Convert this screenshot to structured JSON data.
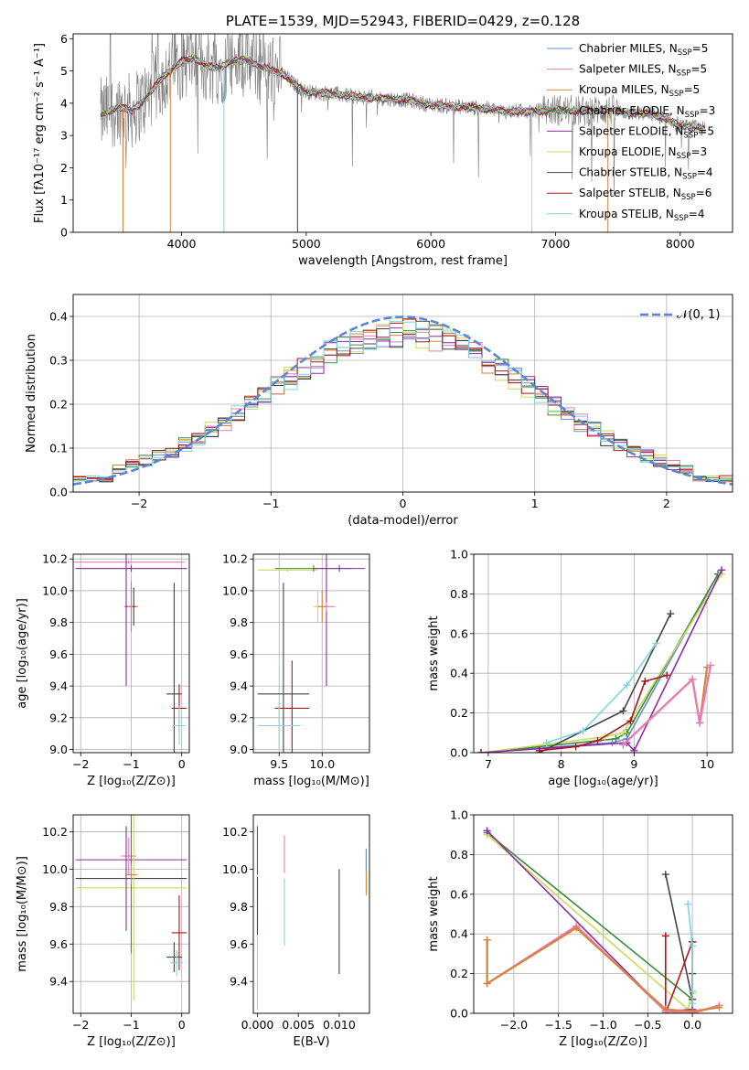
{
  "chart_data": [
    {
      "id": "spectrum",
      "type": "line",
      "title": "PLATE=1539, MJD=52943, FIBERID=0429, z=0.128",
      "xlabel": "wavelength [Angstrom, rest frame]",
      "ylabel": "Flux [fλ10⁻¹⁷ erg cm⁻² s⁻¹ A⁻¹]",
      "xlim": [
        3130,
        8420
      ],
      "ylim": [
        0,
        6.15
      ],
      "xticks": [
        4000,
        5000,
        6000,
        7000,
        8000
      ],
      "yticks": [
        0,
        1,
        2,
        3,
        4,
        5,
        6
      ],
      "grid": false,
      "legend": "upper right",
      "legend_entries": [
        {
          "label": "Chabrier MILES, N",
          "sub": "SSP",
          "eq": "=5",
          "color": "#6a8fd8"
        },
        {
          "label": "Salpeter MILES, N",
          "sub": "SSP",
          "eq": "=5",
          "color": "#e87ab8"
        },
        {
          "label": "Kroupa MILES, N",
          "sub": "SSP",
          "eq": "=5",
          "color": "#d9843b"
        },
        {
          "label": "Chabrier ELODIE, N",
          "sub": "SSP",
          "eq": "=3",
          "color": "#3c8c3c"
        },
        {
          "label": "Salpeter ELODIE, N",
          "sub": "SSP",
          "eq": "=5",
          "color": "#8e2aa8"
        },
        {
          "label": "Kroupa ELODIE, N",
          "sub": "SSP",
          "eq": "=3",
          "color": "#c9dc5a"
        },
        {
          "label": "Chabrier STELIB, N",
          "sub": "SSP",
          "eq": "=4",
          "color": "#444444"
        },
        {
          "label": "Salpeter STELIB, N",
          "sub": "SSP",
          "eq": "=6",
          "color": "#b0151a"
        },
        {
          "label": "Kroupa STELIB, N",
          "sub": "SSP",
          "eq": "=4",
          "color": "#7fd6e0"
        }
      ],
      "continuum_x": [
        3350,
        3500,
        3600,
        3700,
        3800,
        3900,
        4000,
        4100,
        4200,
        4300,
        4400,
        4500,
        4600,
        4700,
        4800,
        4900,
        5000,
        5200,
        5400,
        5600,
        5800,
        6000,
        6200,
        6400,
        6600,
        6800,
        7000,
        7200,
        7400,
        7600,
        7800,
        8000,
        8200
      ],
      "continuum_y": [
        3.6,
        3.9,
        3.75,
        4.1,
        4.6,
        5.0,
        5.3,
        5.4,
        5.15,
        5.1,
        5.3,
        5.35,
        5.2,
        5.05,
        4.95,
        4.6,
        4.35,
        4.3,
        4.2,
        4.15,
        4.1,
        3.95,
        3.9,
        3.85,
        3.75,
        3.75,
        3.8,
        3.75,
        3.8,
        3.7,
        3.65,
        3.3,
        3.2
      ],
      "absorption_features": [
        {
          "x": 3530,
          "color": "#d9843b"
        },
        {
          "x": 3910,
          "color": "#d9843b"
        },
        {
          "x": 4340,
          "color": "#7fd6e0"
        },
        {
          "x": 4930,
          "color": "#444444"
        },
        {
          "x": 6810,
          "color": "#c9dc5a"
        },
        {
          "x": 7420,
          "color": "#d9843b"
        }
      ]
    },
    {
      "id": "residuals",
      "type": "histogram",
      "xlabel": "(data-model)/error",
      "ylabel": "Normed distribution",
      "xlim": [
        -2.5,
        2.5
      ],
      "ylim": [
        0,
        0.45
      ],
      "xticks": [
        -2,
        -1,
        0,
        1,
        2
      ],
      "yticks": [
        0.0,
        0.1,
        0.2,
        0.3,
        0.4
      ],
      "grid": true,
      "legend": "upper right",
      "legend_label": "𝒩(0, 1)",
      "normal_curve": {
        "mean": 0,
        "sigma": 1,
        "color": "#5b86d6"
      },
      "bin_width": 0.1,
      "bin_start": -2.5,
      "mean_profile": [
        0.04,
        0.035,
        0.03,
        0.04,
        0.05,
        0.06,
        0.07,
        0.08,
        0.09,
        0.1,
        0.115,
        0.13,
        0.15,
        0.17,
        0.19,
        0.205,
        0.22,
        0.235,
        0.25,
        0.27,
        0.29,
        0.31,
        0.33,
        0.345,
        0.35,
        0.355,
        0.36,
        0.35,
        0.335,
        0.345,
        0.35,
        0.34,
        0.33,
        0.325,
        0.33,
        0.33,
        0.325,
        0.34,
        0.32,
        0.3,
        0.29,
        0.26,
        0.24,
        0.25,
        0.24,
        0.2,
        0.19,
        0.18,
        0.175,
        0.16,
        0.15,
        0.14,
        0.13,
        0.12,
        0.11,
        0.1,
        0.09,
        0.08,
        0.07,
        0.06,
        0.05,
        0.045,
        0.04,
        0.035,
        0.03,
        0.035,
        0.03,
        0.025,
        0.03,
        0.025,
        0.025,
        0.03,
        0.03,
        0.025,
        0.03,
        0.035,
        0.03,
        0.03,
        0.03,
        0.035,
        0.03,
        0.03,
        0.03,
        0.035,
        0.03,
        0.025,
        0.03,
        0.03,
        0.03,
        0.03,
        0.03,
        0.03,
        0.03,
        0.03,
        0.03,
        0.03,
        0.03,
        0.03,
        0.03,
        0.03
      ],
      "series_colors": [
        "#6a8fd8",
        "#e87ab8",
        "#d9843b",
        "#3c8c3c",
        "#8e2aa8",
        "#c9dc5a",
        "#444444",
        "#b0151a",
        "#7fd6e0"
      ]
    },
    {
      "id": "age-vs-Z",
      "type": "errorbar",
      "xlabel": "Z [log₁₀(Z/Z⊙)]",
      "ylabel": "age  [log₁₀(age/yr)]",
      "xlim": [
        -2.15,
        0.15
      ],
      "ylim": [
        8.98,
        10.23
      ],
      "xticks": [
        -2,
        -1,
        0
      ],
      "yticks": [
        9.0,
        9.2,
        9.4,
        9.6,
        9.8,
        10.0,
        10.2
      ],
      "grid": true,
      "points": [
        {
          "x": -1.0,
          "y": 10.14,
          "xerr": 1.1,
          "yerr": 0.03,
          "color": "#3c8c3c"
        },
        {
          "x": -1.0,
          "y": 10.14,
          "xerr": 1.05,
          "yerr": 0.04,
          "color": "#c9dc5a"
        },
        {
          "x": -1.0,
          "y": 10.14,
          "xerr": 1.1,
          "yerr": 0.02,
          "color": "#8e2aa8"
        },
        {
          "x": -1.05,
          "y": 10.18,
          "xerr": 1.1,
          "yerr": 0.01,
          "color": "#e87ab8"
        },
        {
          "x": -1.0,
          "y": 9.9,
          "xerr": 0.1,
          "yerr": 0.16,
          "color": "#6a8fd8"
        },
        {
          "x": -1.0,
          "y": 9.9,
          "xerr": 0.14,
          "yerr": 0.03,
          "color": "#e87ab8"
        },
        {
          "x": -1.0,
          "y": 9.9,
          "xerr": 0.12,
          "yerr": 0.03,
          "color": "#d9843b"
        },
        {
          "x": -1.1,
          "y": 9.9,
          "xerr": 0.02,
          "yerr": 0.5,
          "color": "#8e2aa8"
        },
        {
          "x": -0.95,
          "y": 9.9,
          "xerr": 0.02,
          "yerr": 0.12,
          "color": "#444444"
        },
        {
          "x": -0.15,
          "y": 9.35,
          "xerr": 0.15,
          "yerr": 0.7,
          "color": "#444444"
        },
        {
          "x": -0.05,
          "y": 9.26,
          "xerr": 0.15,
          "yerr": 0.15,
          "color": "#b0151a"
        },
        {
          "x": -0.05,
          "y": 9.15,
          "xerr": 0.12,
          "yerr": 0.12,
          "color": "#7fd6e0"
        }
      ]
    },
    {
      "id": "age-vs-mass",
      "type": "errorbar",
      "xlabel": "mass [log₁₀(M/M⊙)]",
      "ylabel": "",
      "xlim": [
        9.2,
        10.55
      ],
      "ylim": [
        8.98,
        10.23
      ],
      "xticks": [
        9.5,
        10.0
      ],
      "yticks": [
        9.0,
        9.2,
        9.4,
        9.6,
        9.8,
        10.0,
        10.2
      ],
      "grid": true,
      "points": [
        {
          "x": 9.6,
          "y": 10.13,
          "xerr": 0.35,
          "yerr": 0.01,
          "color": "#c9dc5a"
        },
        {
          "x": 9.9,
          "y": 10.14,
          "xerr": 0.45,
          "yerr": 0.02,
          "color": "#3c8c3c"
        },
        {
          "x": 10.2,
          "y": 10.14,
          "xerr": 0.3,
          "yerr": 0.02,
          "color": "#8e2aa8"
        },
        {
          "x": 10.05,
          "y": 9.9,
          "xerr": 0.02,
          "yerr": 0.5,
          "color": "#8e2aa8"
        },
        {
          "x": 10.05,
          "y": 9.9,
          "xerr": 0.1,
          "yerr": 0.03,
          "color": "#e87ab8"
        },
        {
          "x": 9.95,
          "y": 9.9,
          "xerr": 0.05,
          "yerr": 0.1,
          "color": "#c9dc5a"
        },
        {
          "x": 10.0,
          "y": 9.9,
          "xerr": 0.05,
          "yerr": 0.1,
          "color": "#d9843b"
        },
        {
          "x": 9.55,
          "y": 9.35,
          "xerr": 0.3,
          "yerr": 0.7,
          "color": "#444444"
        },
        {
          "x": 9.65,
          "y": 9.26,
          "xerr": 0.2,
          "yerr": 0.3,
          "color": "#b0151a"
        },
        {
          "x": 9.5,
          "y": 9.15,
          "xerr": 0.25,
          "yerr": 0.15,
          "color": "#7fd6e0"
        }
      ]
    },
    {
      "id": "mass-weight-vs-age",
      "type": "line",
      "xlabel": "age  [log₁₀(age/yr)]",
      "ylabel": "mass weight",
      "xlim": [
        6.8,
        10.35
      ],
      "ylim": [
        0,
        1.0
      ],
      "xticks": [
        7,
        8,
        9,
        10
      ],
      "yticks": [
        0.0,
        0.2,
        0.4,
        0.6,
        0.8,
        1.0
      ],
      "grid": true,
      "series": [
        {
          "color": "#6a8fd8",
          "x": [
            6.9,
            8.7,
            8.9,
            10.15
          ],
          "y": [
            0.0,
            0.05,
            0.07,
            0.9
          ]
        },
        {
          "color": "#3c8c3c",
          "x": [
            6.9,
            8.75,
            8.9,
            10.15
          ],
          "y": [
            0.0,
            0.07,
            0.1,
            0.9
          ]
        },
        {
          "color": "#c9dc5a",
          "x": [
            6.9,
            8.6,
            8.85,
            10.2
          ],
          "y": [
            0.0,
            0.08,
            0.1,
            0.9
          ]
        },
        {
          "color": "#8e2aa8",
          "x": [
            6.9,
            8.9,
            9.0,
            10.2
          ],
          "y": [
            0.0,
            0.05,
            0.01,
            0.92
          ]
        },
        {
          "color": "#444444",
          "x": [
            7.7,
            8.85,
            9.5
          ],
          "y": [
            0.0,
            0.21,
            0.7
          ]
        },
        {
          "color": "#b0151a",
          "x": [
            7.7,
            8.2,
            8.5,
            8.95,
            9.15,
            9.45
          ],
          "y": [
            0.01,
            0.03,
            0.06,
            0.16,
            0.36,
            0.39
          ]
        },
        {
          "color": "#7fd6e0",
          "x": [
            7.8,
            8.3,
            8.9,
            9.3
          ],
          "y": [
            0.05,
            0.11,
            0.34,
            0.55
          ]
        },
        {
          "color": "#d9843b",
          "x": [
            8.85,
            9.8,
            9.9,
            10.0
          ],
          "y": [
            0.04,
            0.37,
            0.15,
            0.43
          ]
        },
        {
          "color": "#e87ab8",
          "x": [
            8.85,
            9.8,
            9.9,
            10.05
          ],
          "y": [
            0.04,
            0.37,
            0.15,
            0.44
          ]
        }
      ]
    },
    {
      "id": "mass-vs-Z",
      "type": "errorbar",
      "xlabel": "Z [log₁₀(Z/Z⊙)]",
      "ylabel": "mass [log₁₀(M/M⊙)]",
      "xlim": [
        -2.15,
        0.15
      ],
      "ylim": [
        9.23,
        10.29
      ],
      "xticks": [
        -2,
        -1,
        0
      ],
      "yticks": [
        9.4,
        9.6,
        9.8,
        10.0,
        10.2
      ],
      "grid": true,
      "points": [
        {
          "x": -1.0,
          "y": 10.05,
          "xerr": 1.1,
          "yerr": 0.01,
          "color": "#8e2aa8"
        },
        {
          "x": -1.0,
          "y": 9.95,
          "xerr": 1.1,
          "yerr": 0.01,
          "color": "#444444"
        },
        {
          "x": -1.0,
          "y": 9.9,
          "xerr": 1.1,
          "yerr": 0.01,
          "color": "#c9dc5a"
        },
        {
          "x": -1.05,
          "y": 10.07,
          "xerr": 0.15,
          "yerr": 0.1,
          "color": "#e87ab8"
        },
        {
          "x": -1.1,
          "y": 9.95,
          "xerr": 0.02,
          "yerr": 0.28,
          "color": "#8e2aa8"
        },
        {
          "x": -1.0,
          "y": 9.95,
          "xerr": 0.02,
          "yerr": 0.4,
          "color": "#3c8c3c"
        },
        {
          "x": -0.95,
          "y": 9.9,
          "xerr": 0.02,
          "yerr": 0.6,
          "color": "#c9dc5a"
        },
        {
          "x": -1.0,
          "y": 9.97,
          "xerr": 0.12,
          "yerr": 0.05,
          "color": "#d9843b"
        },
        {
          "x": -0.15,
          "y": 9.53,
          "xerr": 0.15,
          "yerr": 0.08,
          "color": "#444444"
        },
        {
          "x": -0.05,
          "y": 9.66,
          "xerr": 0.15,
          "yerr": 0.2,
          "color": "#b0151a"
        },
        {
          "x": -0.1,
          "y": 9.5,
          "xerr": 0.12,
          "yerr": 0.07,
          "color": "#7fd6e0"
        }
      ]
    },
    {
      "id": "mass-vs-EBV",
      "type": "errorbar",
      "xlabel": "E(B-V)",
      "ylabel": "",
      "xlim": [
        -0.0005,
        0.0137
      ],
      "ylim": [
        9.23,
        10.29
      ],
      "xticks": [
        0.0,
        0.005,
        0.01
      ],
      "xtick_labels": [
        "0.000",
        "0.005",
        "0.010"
      ],
      "yticks": [
        9.4,
        9.6,
        9.8,
        10.0,
        10.2
      ],
      "grid": false,
      "points": [
        {
          "x": 0.0,
          "y": 10.1,
          "yerr": 0.13,
          "color": "#8e2aa8"
        },
        {
          "x": 0.0,
          "y": 9.8,
          "yerr": 0.16,
          "color": "#b0151a"
        },
        {
          "x": 0.0,
          "y": 9.45,
          "yerr": 0.2,
          "color": "#c9dc5a"
        },
        {
          "x": 0.0033,
          "y": 10.08,
          "yerr": 0.1,
          "color": "#e87ab8"
        },
        {
          "x": 0.0033,
          "y": 9.77,
          "yerr": 0.18,
          "color": "#7fd6e0"
        },
        {
          "x": 0.01,
          "y": 9.72,
          "yerr": 0.28,
          "color": "#444444"
        },
        {
          "x": 0.0133,
          "y": 9.98,
          "yerr": 0.12,
          "color": "#d9843b"
        },
        {
          "x": 0.0133,
          "y": 10.05,
          "yerr": 0.06,
          "color": "#6a8fd8"
        }
      ]
    },
    {
      "id": "mass-weight-vs-Z",
      "type": "line",
      "xlabel": "Z [log₁₀(Z/Z⊙)]",
      "ylabel": "mass weight",
      "xlim": [
        -2.45,
        0.45
      ],
      "ylim": [
        0,
        1.0
      ],
      "xticks": [
        -2.0,
        -1.5,
        -1.0,
        -0.5,
        0.0
      ],
      "yticks": [
        0.0,
        0.2,
        0.4,
        0.6,
        0.8,
        1.0
      ],
      "grid": true,
      "series": [
        {
          "color": "#3c8c3c",
          "x": [
            -2.3,
            0.0,
            0.0
          ],
          "y": [
            0.91,
            0.07,
            0.0
          ]
        },
        {
          "color": "#c9dc5a",
          "x": [
            -2.3,
            -0.05,
            0.0
          ],
          "y": [
            0.9,
            0.02,
            0.1
          ]
        },
        {
          "color": "#8e2aa8",
          "x": [
            -2.3,
            -0.3,
            0.0,
            0.0
          ],
          "y": [
            0.92,
            0.01,
            0.02,
            0.0
          ]
        },
        {
          "color": "#444444",
          "x": [
            -0.3,
            0.0,
            0.0
          ],
          "y": [
            0.7,
            0.07,
            0.2
          ]
        },
        {
          "color": "#b0151a",
          "x": [
            -0.3,
            -0.3,
            0.0,
            0.0
          ],
          "y": [
            0.39,
            0.0,
            0.36,
            0.0
          ]
        },
        {
          "color": "#7fd6e0",
          "x": [
            -0.05,
            0.0,
            0.0,
            0.0
          ],
          "y": [
            0.55,
            0.34,
            0.11,
            0.05
          ]
        },
        {
          "color": "#e87ab8",
          "x": [
            -2.3,
            -2.3,
            -1.3,
            -0.3,
            0.0,
            0.3
          ],
          "y": [
            0.37,
            0.15,
            0.44,
            0.01,
            0.0,
            0.04
          ]
        },
        {
          "color": "#d9843b",
          "x": [
            -2.3,
            -2.3,
            -1.3,
            -0.3,
            0.0,
            0.3
          ],
          "y": [
            0.37,
            0.15,
            0.43,
            0.02,
            0.01,
            0.03
          ]
        }
      ]
    }
  ]
}
